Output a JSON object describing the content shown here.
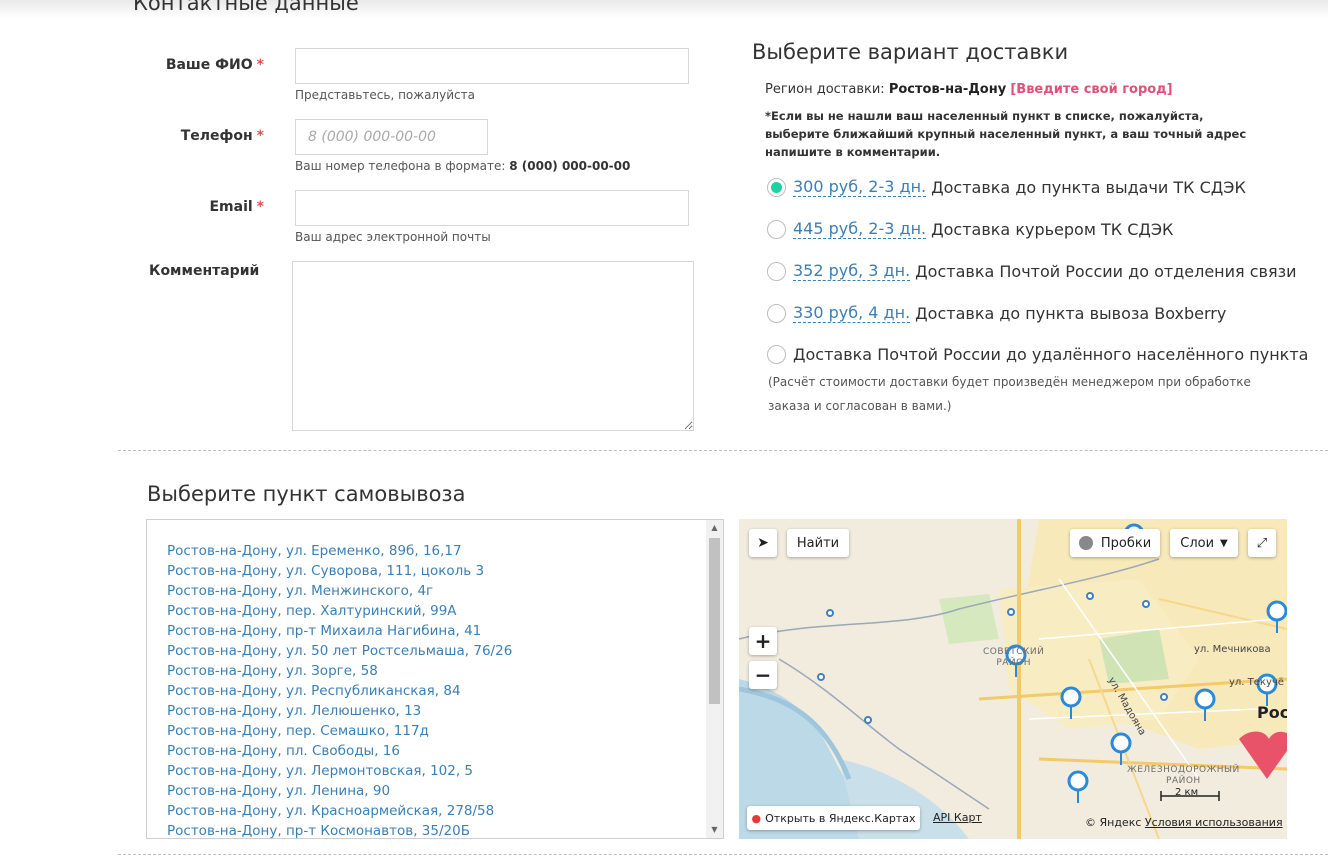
{
  "contacts": {
    "title": "Контактные данные",
    "name": {
      "label": "Ваше ФИО",
      "required": "*",
      "value": "",
      "placeholder": "",
      "hint": "Представьтесь, пожалуйста"
    },
    "phone": {
      "label": "Телефон",
      "required": "*",
      "value": "",
      "placeholder": "8 (000) 000-00-00",
      "hint_prefix": "Ваш номер телефона в формате:",
      "hint_format": "8 (000) 000-00-00"
    },
    "email": {
      "label": "Email",
      "required": "*",
      "value": "",
      "placeholder": "",
      "hint": "Ваш адрес электронной почты"
    },
    "comment": {
      "label": "Комментарий",
      "value": ""
    }
  },
  "delivery": {
    "title": "Выберите вариант доставки",
    "region_prefix": "Регион доставки:",
    "region_city": "Ростов-на-Дону",
    "change_city": "[Введите свой город]",
    "note": "*Если вы не нашли ваш населенный пункт в списке, пожалуйста, выберите ближайший крупный населенный пункт, а ваш точный адрес напишите в комментарии.",
    "options": [
      {
        "price": "300 руб, 2-3 дн.",
        "label": "Доставка до пункта выдачи ТК СДЭК",
        "selected": true
      },
      {
        "price": "445 руб, 2-3 дн.",
        "label": "Доставка курьером ТК СДЭК",
        "selected": false
      },
      {
        "price": "352 руб, 3 дн.",
        "label": "Доставка Почтой России до отделения связи",
        "selected": false
      },
      {
        "price": "330 руб, 4 дн.",
        "label": "Доставка до пункта вывоза Boxberry",
        "selected": false
      },
      {
        "price": "",
        "label": "Доставка Почтой России до удалённого населённого пункта",
        "selected": false
      }
    ],
    "remote_note": "(Расчёт стоимости доставки будет произведён менеджером при обработке заказа и согласован в вами.)"
  },
  "pickup": {
    "title": "Выберите пункт самовывоза",
    "points": [
      "Ростов-на-Дону, ул. Еременко, 89б, 16,17",
      "Ростов-на-Дону, ул. Суворова, 111, цоколь 3",
      "Ростов-на-Дону, ул. Менжинского, 4г",
      "Ростов-на-Дону, пер. Халтуринский, 99А",
      "Ростов-на-Дону, пр-т Михаила Нагибина, 41",
      "Ростов-на-Дону, ул. 50 лет Ростсельмаша, 76/26",
      "Ростов-на-Дону, ул. Зорге, 58",
      "Ростов-на-Дону, ул. Республиканская, 84",
      "Ростов-на-Дону, ул. Лелюшенко, 13",
      "Ростов-на-Дону, пер. Семашко, 117д",
      "Ростов-на-Дону, пл. Свободы, 16",
      "Ростов-на-Дону, ул. Лермонтовская, 102, 5",
      "Ростов-на-Дону, ул. Ленина, 90",
      "Ростов-на-Дону, ул. Красноармейская, 278/58",
      "Ростов-на-Дону, пр-т Космонавтов, 35/20Б"
    ]
  },
  "map": {
    "find_label": "Найти",
    "traffic_label": "Пробки",
    "layers_label": "Слои",
    "zoom_in": "+",
    "zoom_out": "−",
    "open_in_yandex": "Открыть в Яндекс.Картах",
    "api_link": "API Карт",
    "scale": "2 км",
    "copyright": "© Яндекс",
    "terms": "Условия использования",
    "labels": {
      "district1": "СОВЕТСКИЙ\nРАЙОН",
      "district2": "ЖЕЛЕЗНОДОРОЖНЫЙ\nРАЙОН",
      "street1": "ул. Мечникова",
      "street2": "ул. Мадояна",
      "street3": "ул. Текучё",
      "city": "Рос"
    }
  }
}
